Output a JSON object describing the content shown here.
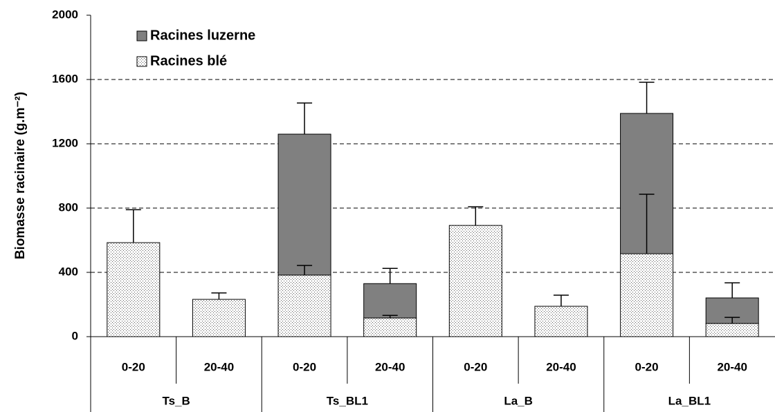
{
  "chart_data": {
    "type": "stacked_bar_error",
    "y_label": "Biomasse racinaire (g.m⁻²)",
    "categories": [
      "0-20",
      "20-40",
      "0-20",
      "20-40",
      "0-20",
      "20-40",
      "0-20",
      "20-40"
    ],
    "groups": [
      "Ts_B",
      "Ts_BL1",
      "La_B",
      "La_BL1"
    ],
    "series": [
      {
        "name": "Racines blé",
        "color": "#ffffff",
        "pattern": "dots",
        "values": [
          585,
          232,
          383,
          116,
          692,
          189,
          516,
          82
        ],
        "errors": [
          205,
          40,
          60,
          16,
          116,
          69,
          370,
          38
        ]
      },
      {
        "name": "Racines luzerne",
        "color": "#808080",
        "values": [
          null,
          null,
          877,
          214,
          null,
          null,
          873,
          159
        ],
        "errors": [
          null,
          null,
          194,
          95,
          null,
          null,
          194,
          94
        ]
      }
    ],
    "ylim": [
      0,
      2000
    ],
    "yticks": [
      0,
      400,
      800,
      1200,
      1600,
      2000
    ],
    "grid": true,
    "legend": "top-left"
  }
}
